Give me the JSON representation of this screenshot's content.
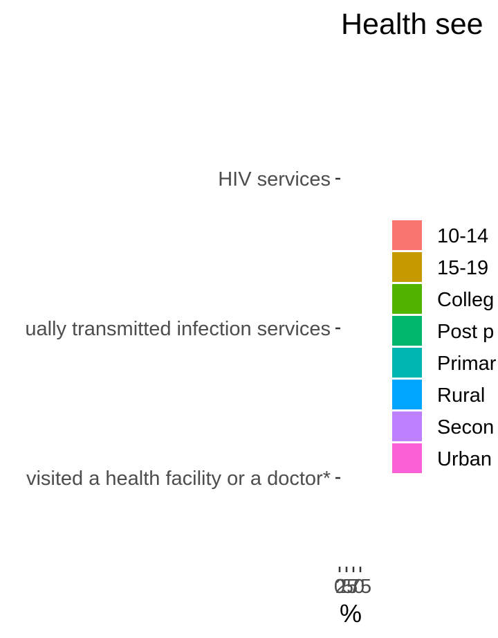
{
  "chart_data": {
    "type": "bar",
    "orientation": "horizontal",
    "title": "Health see",
    "xlabel": "%",
    "ylabel": "",
    "categories": [
      "HIV services",
      "ually transmitted infection services",
      "visited a health facility or a doctor*"
    ],
    "x_tick_labels": [
      "0",
      "25",
      "50",
      "75"
    ],
    "legend": {
      "position": "right",
      "entries": [
        {
          "name": "10-14",
          "color": "#F8766D"
        },
        {
          "name": "15-19",
          "color": "#C49A00"
        },
        {
          "name": "Colleg",
          "color": "#53B400"
        },
        {
          "name": "Post p",
          "color": "#00B76D"
        },
        {
          "name": "Primar",
          "color": "#00B6B0"
        },
        {
          "name": "Rural",
          "color": "#00A5FF"
        },
        {
          "name": "Secon",
          "color": "#BE80FF"
        },
        {
          "name": "Urban",
          "color": "#FB61D7"
        }
      ]
    },
    "grid": false
  }
}
